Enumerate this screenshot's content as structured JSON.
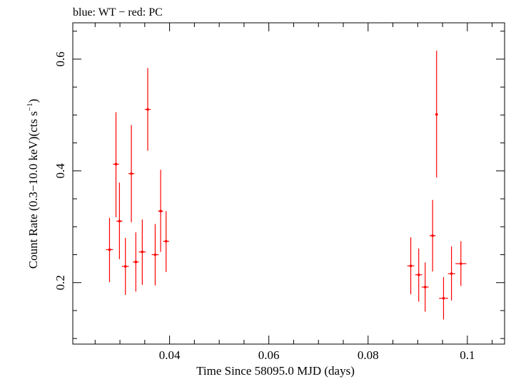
{
  "header": {
    "legend_text": "blue: WT − red: PC"
  },
  "colors": {
    "pc": "#ff0000",
    "wt": "#0000ff",
    "axis": "#000000"
  },
  "chart_data": {
    "type": "scatter",
    "title": "blue: WT − red: PC",
    "xlabel": "Time Since 58095.0 MJD (days)",
    "ylabel_main": "Count Rate (0.3−10.0 keV)(cts s",
    "ylabel_sup": "−1",
    "ylabel_end": ")",
    "xlim": [
      0.0205,
      0.1075
    ],
    "ylim": [
      0.09,
      0.665
    ],
    "x_ticks": [
      {
        "value": 0.04,
        "label": "0.04"
      },
      {
        "value": 0.06,
        "label": "0.06"
      },
      {
        "value": 0.08,
        "label": "0.08"
      },
      {
        "value": 0.1,
        "label": "0.1"
      }
    ],
    "x_minor_step": 0.005,
    "y_ticks": [
      {
        "value": 0.2,
        "label": "0.2"
      },
      {
        "value": 0.4,
        "label": "0.4"
      },
      {
        "value": 0.6,
        "label": "0.6"
      }
    ],
    "y_minor_step": 0.05,
    "grid": false,
    "series": [
      {
        "name": "PC",
        "color": "#ff0000",
        "points": [
          {
            "x": 0.0279,
            "y": 0.259,
            "xerr": 0.0007,
            "ylo": 0.201,
            "yhi": 0.316
          },
          {
            "x": 0.0292,
            "y": 0.412,
            "xerr": 0.0006,
            "ylo": 0.317,
            "yhi": 0.505
          },
          {
            "x": 0.0299,
            "y": 0.31,
            "xerr": 0.0006,
            "ylo": 0.242,
            "yhi": 0.379
          },
          {
            "x": 0.0311,
            "y": 0.229,
            "xerr": 0.0007,
            "ylo": 0.178,
            "yhi": 0.28
          },
          {
            "x": 0.0323,
            "y": 0.395,
            "xerr": 0.0006,
            "ylo": 0.308,
            "yhi": 0.482
          },
          {
            "x": 0.0332,
            "y": 0.237,
            "xerr": 0.0006,
            "ylo": 0.184,
            "yhi": 0.29
          },
          {
            "x": 0.0345,
            "y": 0.255,
            "xerr": 0.0007,
            "ylo": 0.196,
            "yhi": 0.313
          },
          {
            "x": 0.0356,
            "y": 0.51,
            "xerr": 0.0006,
            "ylo": 0.436,
            "yhi": 0.584
          },
          {
            "x": 0.0371,
            "y": 0.25,
            "xerr": 0.0007,
            "ylo": 0.195,
            "yhi": 0.305
          },
          {
            "x": 0.0382,
            "y": 0.328,
            "xerr": 0.0005,
            "ylo": 0.255,
            "yhi": 0.402
          },
          {
            "x": 0.0393,
            "y": 0.274,
            "xerr": 0.0006,
            "ylo": 0.219,
            "yhi": 0.328
          },
          {
            "x": 0.0886,
            "y": 0.23,
            "xerr": 0.0007,
            "ylo": 0.179,
            "yhi": 0.281
          },
          {
            "x": 0.0902,
            "y": 0.214,
            "xerr": 0.0007,
            "ylo": 0.166,
            "yhi": 0.261
          },
          {
            "x": 0.0915,
            "y": 0.192,
            "xerr": 0.0007,
            "ylo": 0.148,
            "yhi": 0.236
          },
          {
            "x": 0.093,
            "y": 0.284,
            "xerr": 0.0006,
            "ylo": 0.22,
            "yhi": 0.348
          },
          {
            "x": 0.0938,
            "y": 0.501,
            "xerr": 0.0003,
            "ylo": 0.388,
            "yhi": 0.615
          },
          {
            "x": 0.0952,
            "y": 0.172,
            "xerr": 0.0009,
            "ylo": 0.134,
            "yhi": 0.21
          },
          {
            "x": 0.0968,
            "y": 0.216,
            "xerr": 0.0007,
            "ylo": 0.168,
            "yhi": 0.265
          },
          {
            "x": 0.0987,
            "y": 0.234,
            "xerr": 0.0011,
            "ylo": 0.194,
            "yhi": 0.274
          }
        ]
      }
    ]
  }
}
